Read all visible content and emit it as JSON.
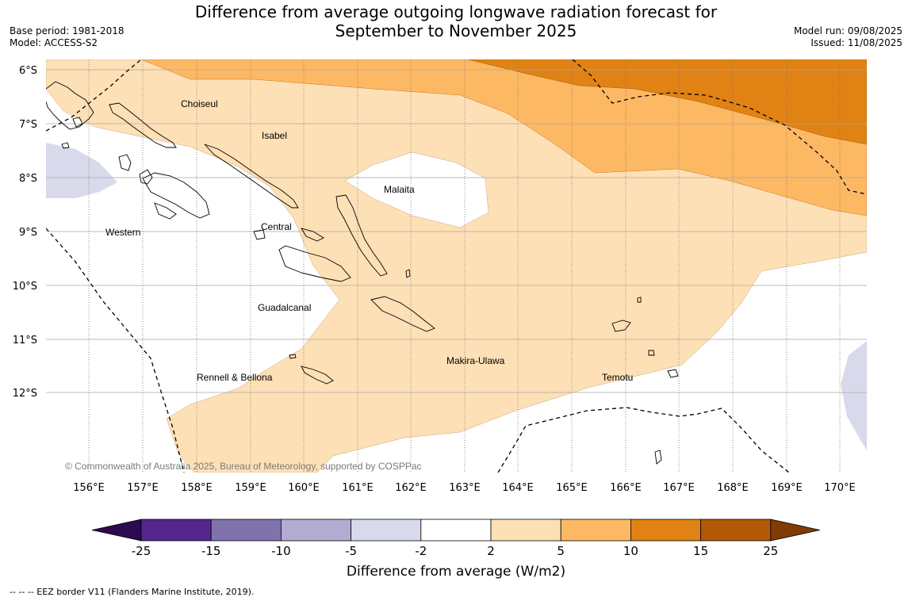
{
  "title_line1": "Difference from average outgoing longwave radiation forecast for",
  "title_line2": "September to November 2025",
  "base_period": "Base period: 1981-2018",
  "model": "Model: ACCESS-S2",
  "model_run": "Model run: 09/08/2025",
  "issued": "Issued: 11/08/2025",
  "copyright": "© Commonwealth of Australia 2025, Bureau of Meteorology, supported by COSPPac",
  "lat_labels": [
    "6°S",
    "7°S",
    "8°S",
    "9°S",
    "10°S",
    "11°S",
    "12°S"
  ],
  "lon_labels": [
    "156°E",
    "157°E",
    "158°E",
    "159°E",
    "160°E",
    "161°E",
    "162°E",
    "163°E",
    "164°E",
    "165°E",
    "166°E",
    "167°E",
    "168°E",
    "169°E",
    "170°E"
  ],
  "provinces": [
    "Choiseul",
    "Isabel",
    "Malaita",
    "Western",
    "Central",
    "Guadalcanal",
    "Makira-Ulawa",
    "Temotu",
    "Rennell & Bellona"
  ],
  "colorbar": {
    "ticks": [
      "-25",
      "-15",
      "-10",
      "-5",
      "-2",
      "2",
      "5",
      "10",
      "15",
      "25"
    ],
    "colors": [
      "#2d0a4e",
      "#54278f",
      "#8073ac",
      "#b2abd2",
      "#d8daeb",
      "#ffffff",
      "#fee0b6",
      "#fdb863",
      "#e08214",
      "#b35806",
      "#7f3b08"
    ],
    "label": "Difference from average (W/m2)"
  },
  "footer": "--  --  -- EEZ border V11 (Flanders Marine Institute, 2019)."
}
